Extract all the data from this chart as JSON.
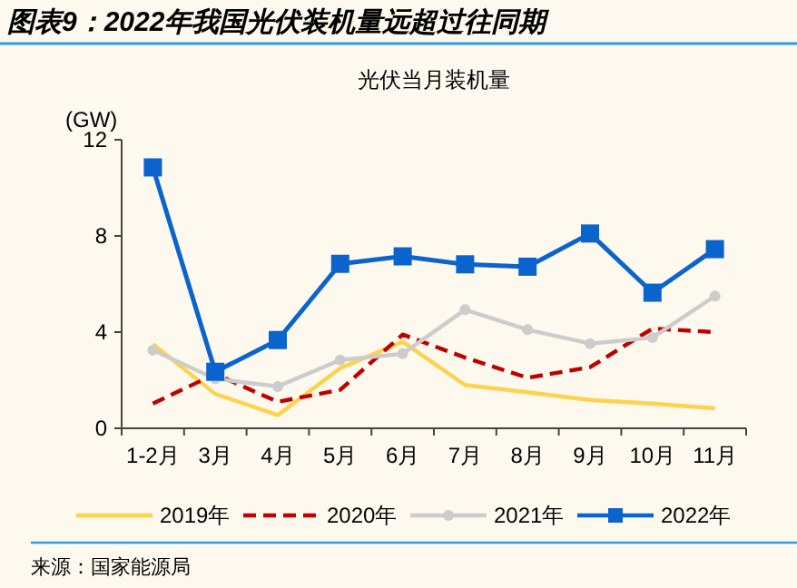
{
  "chart_data": {
    "type": "line",
    "title": "图表9：2022年我国光伏装机量远超过往同期",
    "subtitle": "光伏当月装机量",
    "ylabel": "(GW)",
    "categories": [
      "1-2月",
      "3月",
      "4月",
      "5月",
      "6月",
      "7月",
      "8月",
      "9月",
      "10月",
      "11月"
    ],
    "series": [
      {
        "name": "2019年",
        "color": "#ffd24d",
        "marker": "none",
        "line_style": "solid",
        "values": [
          3.5,
          1.43,
          0.55,
          2.5,
          3.6,
          1.8,
          1.5,
          1.18,
          1.03,
          0.83
        ]
      },
      {
        "name": "2020年",
        "color": "#c00000",
        "marker": "none",
        "line_style": "dashed",
        "values": [
          1.03,
          2.26,
          1.1,
          1.6,
          3.9,
          2.94,
          2.1,
          2.54,
          4.15,
          4.0
        ]
      },
      {
        "name": "2021年",
        "color": "#cccccc",
        "marker": "circle",
        "line_style": "solid",
        "values": [
          3.25,
          2.06,
          1.74,
          2.84,
          3.1,
          4.93,
          4.1,
          3.52,
          3.77,
          5.5
        ]
      },
      {
        "name": "2022年",
        "color": "#0b63ce",
        "marker": "square",
        "line_style": "solid",
        "values": [
          10.85,
          2.35,
          3.67,
          6.84,
          7.15,
          6.82,
          6.72,
          8.1,
          5.64,
          7.45
        ]
      }
    ],
    "ylim": [
      0,
      12
    ],
    "yticks": [
      0,
      4,
      8,
      12
    ],
    "grid": false,
    "legend": "bottom",
    "annotations": [
      "来源：国家能源局"
    ]
  }
}
